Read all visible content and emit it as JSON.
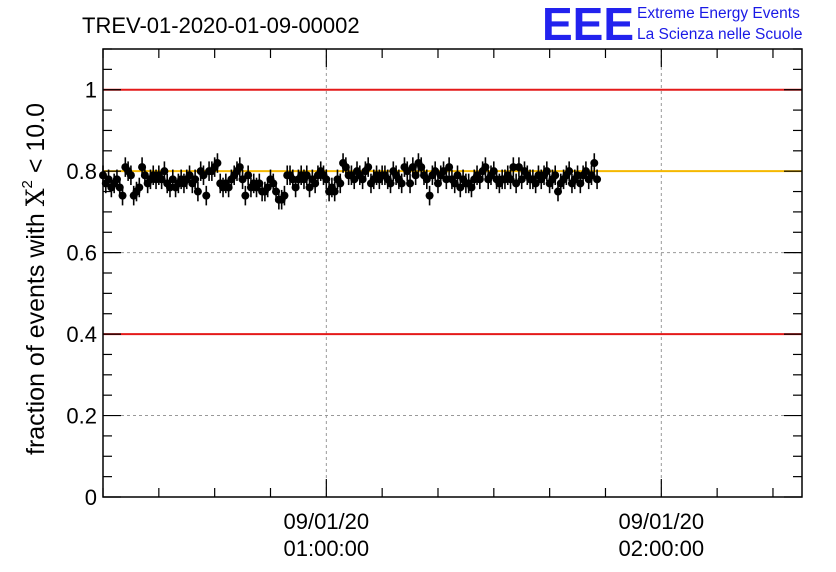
{
  "chart_data": {
    "type": "scatter",
    "title": "TREV-01-2020-01-09-00002",
    "ylabel_prefix": "fraction of events with ",
    "ylabel_symbol": "X",
    "ylabel_sup": "2",
    "ylabel_suffix": " < 10.0",
    "ylim": [
      0,
      1.1
    ],
    "yticks": [
      0,
      0.2,
      0.4,
      0.6,
      0.8,
      1
    ],
    "ytick_labels": [
      "0",
      "0.2",
      "0.4",
      "0.6",
      "0.8",
      "1"
    ],
    "xlim_hours": [
      0.3333,
      2.42
    ],
    "xticks": [
      {
        "hours": 1,
        "date": "09/01/20",
        "time": "01:00:00"
      },
      {
        "hours": 2,
        "date": "09/01/20",
        "time": "02:00:00"
      }
    ],
    "grid": true,
    "threshold_lines": [
      {
        "y": 1.0,
        "color": "#e41a1a"
      },
      {
        "y": 0.4,
        "color": "#e41a1a"
      }
    ],
    "reference_line": {
      "y": 0.8,
      "color": "#f5b800"
    },
    "series": [
      {
        "marker_color": "#000000",
        "error": 0.024,
        "x_start_hours": 0.3333,
        "x_step_hours": 0.008333,
        "y": [
          0.79,
          0.77,
          0.78,
          0.76,
          0.77,
          0.78,
          0.76,
          0.74,
          0.81,
          0.8,
          0.79,
          0.74,
          0.75,
          0.76,
          0.81,
          0.79,
          0.77,
          0.78,
          0.79,
          0.78,
          0.79,
          0.78,
          0.8,
          0.77,
          0.76,
          0.78,
          0.76,
          0.77,
          0.78,
          0.77,
          0.78,
          0.79,
          0.77,
          0.78,
          0.75,
          0.8,
          0.79,
          0.74,
          0.8,
          0.8,
          0.81,
          0.82,
          0.77,
          0.76,
          0.77,
          0.76,
          0.78,
          0.79,
          0.8,
          0.81,
          0.78,
          0.74,
          0.79,
          0.76,
          0.77,
          0.76,
          0.77,
          0.75,
          0.75,
          0.76,
          0.78,
          0.77,
          0.75,
          0.73,
          0.73,
          0.74,
          0.79,
          0.79,
          0.78,
          0.76,
          0.78,
          0.79,
          0.78,
          0.79,
          0.76,
          0.78,
          0.77,
          0.79,
          0.8,
          0.79,
          0.78,
          0.75,
          0.76,
          0.75,
          0.78,
          0.77,
          0.82,
          0.81,
          0.79,
          0.79,
          0.78,
          0.8,
          0.79,
          0.78,
          0.8,
          0.81,
          0.77,
          0.78,
          0.79,
          0.78,
          0.79,
          0.79,
          0.78,
          0.77,
          0.8,
          0.79,
          0.78,
          0.77,
          0.81,
          0.8,
          0.77,
          0.81,
          0.79,
          0.82,
          0.81,
          0.79,
          0.78,
          0.74,
          0.79,
          0.8,
          0.77,
          0.79,
          0.8,
          0.78,
          0.81,
          0.78,
          0.77,
          0.79,
          0.76,
          0.78,
          0.77,
          0.77,
          0.76,
          0.78,
          0.79,
          0.78,
          0.8,
          0.81,
          0.78,
          0.79,
          0.8,
          0.78,
          0.77,
          0.78,
          0.78,
          0.79,
          0.78,
          0.81,
          0.77,
          0.81,
          0.78,
          0.8,
          0.79,
          0.78,
          0.78,
          0.77,
          0.79,
          0.78,
          0.79,
          0.8,
          0.77,
          0.78,
          0.79,
          0.75,
          0.77,
          0.78,
          0.79,
          0.8,
          0.77,
          0.78,
          0.79,
          0.77,
          0.79,
          0.8,
          0.78,
          0.79,
          0.82,
          0.78
        ]
      }
    ]
  },
  "logo": {
    "letters": "EEE",
    "line1": "Extreme Energy Events",
    "line2": "La Scienza nelle Scuole"
  }
}
